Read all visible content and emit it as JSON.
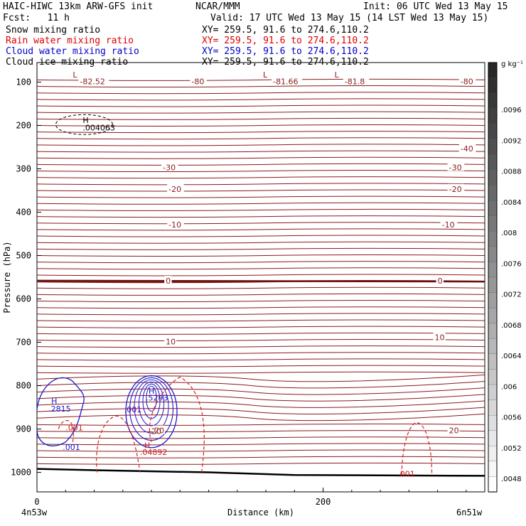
{
  "header": {
    "model_title": "HAIC-HIWC 13km ARW-GFS init",
    "center": "NCAR/MMM",
    "init": "Init: 06 UTC Wed 13 May 15",
    "fcst": "Fcst:   11 h",
    "valid": "Valid: 17 UTC Wed 13 May 15 (14 LST Wed 13 May 15)",
    "fields": [
      {
        "name": "Snow mixing ratio",
        "xy": "XY= 259.5, 91.6 to 274.6,110.2",
        "color": "#000000"
      },
      {
        "name": "Rain water mixing ratio",
        "xy": "XY= 259.5, 91.6 to 274.6,110.2",
        "color": "#dd0000"
      },
      {
        "name": "Cloud water mixing ratio",
        "xy": "XY= 259.5, 91.6 to 274.6,110.2",
        "color": "#0000cc"
      },
      {
        "name": "Cloud ice mixing ratio",
        "xy": "XY= 259.5, 91.6 to 274.6,110.2",
        "color": "#000000"
      }
    ]
  },
  "chart_data": {
    "type": "contour",
    "xlabel": "Distance (km)",
    "ylabel": "Pressure (hPa)",
    "x_ticks": [
      0,
      200
    ],
    "y_ticks": [
      100,
      200,
      300,
      400,
      500,
      600,
      700,
      800,
      900,
      1000
    ],
    "xlim": [
      0,
      313
    ],
    "ylim": [
      1045,
      55
    ],
    "left_end_label": "4n53w",
    "right_end_label": "6n51w",
    "temperature_contours": [
      {
        "label": "-82.52",
        "x": 30,
        "p": 100
      },
      {
        "label": "-80",
        "x": 108,
        "p": 100
      },
      {
        "label": "-81.66",
        "x": 165,
        "p": 100
      },
      {
        "label": "-81.8",
        "x": 215,
        "p": 100
      },
      {
        "label": "-80",
        "x": 296,
        "p": 100
      },
      {
        "label": "-40",
        "x": 296,
        "p": 255
      },
      {
        "label": "-30",
        "x": 88,
        "p": 298
      },
      {
        "label": "-30",
        "x": 288,
        "p": 298
      },
      {
        "label": "-20",
        "x": 92,
        "p": 348
      },
      {
        "label": "-20",
        "x": 288,
        "p": 348
      },
      {
        "label": "-10",
        "x": 92,
        "p": 430
      },
      {
        "label": "-10",
        "x": 283,
        "p": 430
      },
      {
        "label": "0",
        "x": 90,
        "p": 560
      },
      {
        "label": "0",
        "x": 280,
        "p": 560
      },
      {
        "label": "10",
        "x": 90,
        "p": 700
      },
      {
        "label": "10",
        "x": 278,
        "p": 690
      },
      {
        "label": "20",
        "x": 82,
        "p": 905
      },
      {
        "label": "20",
        "x": 288,
        "p": 905
      }
    ],
    "annotations": [
      {
        "text": "L",
        "x": 25,
        "p": 83,
        "color": "#8b1a1a"
      },
      {
        "text": "L",
        "x": 158,
        "p": 83,
        "color": "#8b1a1a"
      },
      {
        "text": "L",
        "x": 208,
        "p": 83,
        "color": "#8b1a1a"
      },
      {
        "text": "H",
        "x": 32,
        "p": 188,
        "color": "#000000"
      },
      {
        "text": ".004063",
        "x": 32,
        "p": 205,
        "color": "#000000"
      },
      {
        "text": "H",
        "x": 10,
        "p": 835,
        "color": "#1a1acc"
      },
      {
        "text": ".2815",
        "x": 8,
        "p": 853,
        "color": "#1a1acc"
      },
      {
        "text": "H",
        "x": 78,
        "p": 812,
        "color": "#1a1acc"
      },
      {
        "text": ".5293",
        "x": 76,
        "p": 828,
        "color": "#1a1acc"
      },
      {
        "text": ".001",
        "x": 61,
        "p": 855,
        "color": "#5500aa"
      },
      {
        "text": ".001",
        "x": 20,
        "p": 897,
        "color": "#cc1a1a"
      },
      {
        "text": ".001",
        "x": 18,
        "p": 942,
        "color": "#1a1acc"
      },
      {
        "text": "H",
        "x": 75,
        "p": 938,
        "color": "#cc1a1a"
      },
      {
        "text": ".04892",
        "x": 72,
        "p": 953,
        "color": "#cc1a1a"
      },
      {
        "text": "20",
        "x": 80,
        "p": 905,
        "color": "#8b1a1a"
      },
      {
        "text": ".001",
        "x": 252,
        "p": 1003,
        "color": "#cc1a1a"
      }
    ],
    "colorbar": {
      "unit": "g kg⁻¹",
      "labels": [
        ".0096",
        ".0092",
        ".0088",
        ".0084",
        ".008",
        ".0076",
        ".0072",
        ".0068",
        ".0064",
        ".006",
        ".0056",
        ".0052",
        ".0048"
      ]
    }
  }
}
